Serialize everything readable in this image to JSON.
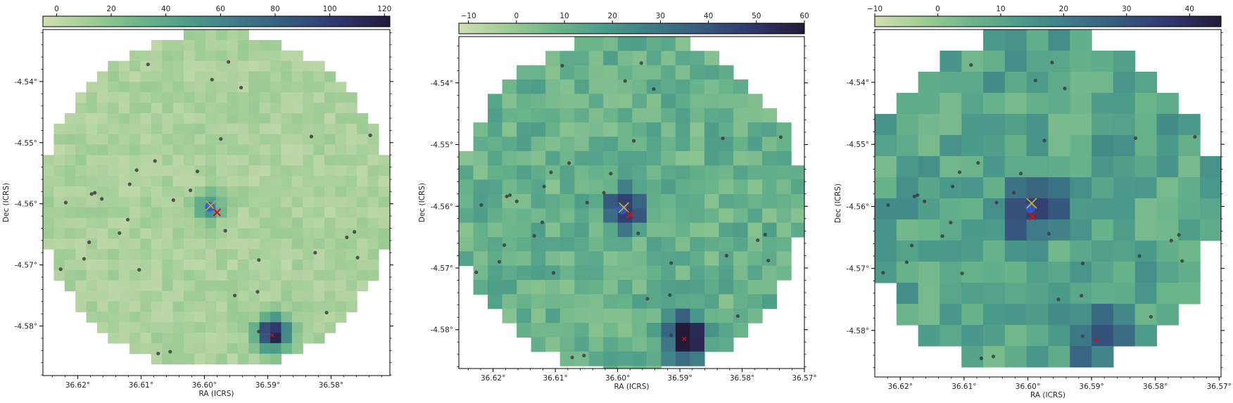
{
  "chart_data": [
    {
      "type": "heatmap",
      "xlabel": "RA (ICRS)",
      "ylabel": "Dec (ICRS)",
      "colormap": [
        "#d2dfb4",
        "#9dcb94",
        "#6ab48b",
        "#4a9a8a",
        "#3d7987",
        "#37577e",
        "#30356b",
        "#231a37"
      ],
      "colorbar": {
        "range": [
          -5,
          122
        ],
        "ticks": [
          0,
          20,
          40,
          60,
          80,
          100,
          120
        ]
      },
      "xlim": [
        36.6255,
        36.5707
      ],
      "ylim": [
        -4.5881,
        -4.5315
      ],
      "xticks": [
        36.62,
        36.61,
        36.6,
        36.59,
        36.58
      ],
      "xtick_labels": [
        "36.62°",
        "36.61°",
        "36.60°",
        "36.59°",
        "36.58°"
      ],
      "yticks": [
        -4.54,
        -4.55,
        -4.56,
        -4.57,
        -4.58
      ],
      "ytick_labels": [
        "-4.54°",
        "-4.55°",
        "-4.56°",
        "-4.57°",
        "-4.58°"
      ],
      "grid": {
        "ra_start": 36.6255,
        "ra_step": 0.00171,
        "dec_start": -4.5315,
        "dec_step": 0.00171,
        "cols": 32,
        "rows": 32
      },
      "aperture": {
        "ra": 36.5981,
        "dec": -4.5597,
        "radius": 0.0277
      },
      "base_level": 8,
      "noise_amplitude": 6,
      "sources": [
        {
          "ra": 36.599,
          "dec": -4.5605,
          "sigma": 0.0016,
          "peak": 45
        },
        {
          "ra": 36.5891,
          "dec": -4.5812,
          "sigma": 0.0018,
          "peak": 118
        }
      ],
      "markers": {
        "blue_circle": [
          36.5991,
          -4.5605
        ],
        "yellow_x": [
          36.599,
          -4.5603
        ],
        "red_x": [
          36.598,
          -4.5614
        ],
        "red_x_2": [
          36.5893,
          -4.5815
        ]
      },
      "points": [
        [
          36.6089,
          -4.5372
        ],
        [
          36.5962,
          -4.5368
        ],
        [
          36.5988,
          -4.5397
        ],
        [
          36.5942,
          -4.541
        ],
        [
          36.6078,
          -4.553
        ],
        [
          36.5974,
          -4.5494
        ],
        [
          36.6162,
          -4.5592
        ],
        [
          36.6049,
          -4.5594
        ],
        [
          36.6107,
          -4.5545
        ],
        [
          36.6011,
          -4.5547
        ],
        [
          36.6022,
          -4.5578
        ],
        [
          36.6173,
          -4.5582
        ],
        [
          36.6178,
          -4.5584
        ],
        [
          36.6118,
          -4.5568
        ],
        [
          36.5831,
          -4.549
        ],
        [
          36.5738,
          -4.5488
        ],
        [
          36.6219,
          -4.5598
        ],
        [
          36.6182,
          -4.5663
        ],
        [
          36.6121,
          -4.5626
        ],
        [
          36.6134,
          -4.5648
        ],
        [
          36.5967,
          -4.5644
        ],
        [
          36.5775,
          -4.5655
        ],
        [
          36.5763,
          -4.5646
        ],
        [
          36.619,
          -4.569
        ],
        [
          36.6227,
          -4.5707
        ],
        [
          36.6103,
          -4.5708
        ],
        [
          36.5914,
          -4.5692
        ],
        [
          36.5825,
          -4.568
        ],
        [
          36.5758,
          -4.5688
        ],
        [
          36.5952,
          -4.575
        ],
        [
          36.5916,
          -4.5744
        ],
        [
          36.5807,
          -4.5778
        ],
        [
          36.5914,
          -4.5809
        ],
        [
          36.6054,
          -4.5842
        ],
        [
          36.6073,
          -4.5845
        ]
      ]
    },
    {
      "type": "heatmap",
      "xlabel": "RA (ICRS)",
      "ylabel": "Dec (ICRS)",
      "colormap": [
        "#d2dfb4",
        "#9dcb94",
        "#6ab48b",
        "#4a9a8a",
        "#3d7987",
        "#37577e",
        "#30356b",
        "#231a37"
      ],
      "colorbar": {
        "range": [
          -12,
          60
        ],
        "ticks": [
          -10,
          0,
          10,
          20,
          30,
          40,
          50,
          60
        ]
      },
      "xlim": [
        36.6255,
        36.57
      ],
      "ylim": [
        -4.5863,
        -4.5325
      ],
      "xticks": [
        36.62,
        36.61,
        36.6,
        36.59,
        36.58,
        36.57
      ],
      "xtick_labels": [
        "36.62°",
        "36.61°",
        "36.60°",
        "36.59°",
        "36.58°",
        "36.57°"
      ],
      "yticks": [
        -4.54,
        -4.55,
        -4.56,
        -4.57,
        -4.58
      ],
      "ytick_labels": [
        "-4.54°",
        "-4.55°",
        "-4.56°",
        "-4.57°",
        "-4.58°"
      ],
      "grid": {
        "ra_start": 36.6255,
        "ra_step": 0.00232,
        "dec_start": -4.5325,
        "dec_step": 0.00232,
        "cols": 24,
        "rows": 24
      },
      "aperture": {
        "ra": 36.5981,
        "dec": -4.5597,
        "radius": 0.0277
      },
      "base_level": 10,
      "noise_amplitude": 8,
      "sources": [
        {
          "ra": 36.599,
          "dec": -4.5605,
          "sigma": 0.0022,
          "peak": 45
        },
        {
          "ra": 36.5891,
          "dec": -4.5812,
          "sigma": 0.0024,
          "peak": 58
        }
      ],
      "markers": {
        "blue_circle": [
          36.5993,
          -4.5605
        ],
        "yellow_x": [
          36.599,
          -4.5602
        ],
        "red_x": [
          36.598,
          -4.5614
        ],
        "red_x_2": [
          36.5893,
          -4.5815
        ]
      },
      "points": [
        [
          36.6089,
          -4.5372
        ],
        [
          36.5962,
          -4.5368
        ],
        [
          36.5988,
          -4.5397
        ],
        [
          36.5942,
          -4.541
        ],
        [
          36.6078,
          -4.553
        ],
        [
          36.5974,
          -4.5494
        ],
        [
          36.6162,
          -4.5592
        ],
        [
          36.6049,
          -4.5594
        ],
        [
          36.6107,
          -4.5545
        ],
        [
          36.6011,
          -4.5547
        ],
        [
          36.6022,
          -4.5578
        ],
        [
          36.6173,
          -4.5582
        ],
        [
          36.6178,
          -4.5584
        ],
        [
          36.6118,
          -4.5568
        ],
        [
          36.5831,
          -4.549
        ],
        [
          36.5738,
          -4.5488
        ],
        [
          36.6219,
          -4.5598
        ],
        [
          36.6182,
          -4.5663
        ],
        [
          36.6121,
          -4.5626
        ],
        [
          36.6134,
          -4.5648
        ],
        [
          36.5967,
          -4.5644
        ],
        [
          36.5775,
          -4.5655
        ],
        [
          36.5763,
          -4.5646
        ],
        [
          36.619,
          -4.569
        ],
        [
          36.6227,
          -4.5707
        ],
        [
          36.6103,
          -4.5708
        ],
        [
          36.5914,
          -4.5692
        ],
        [
          36.5825,
          -4.568
        ],
        [
          36.5758,
          -4.5688
        ],
        [
          36.5952,
          -4.575
        ],
        [
          36.5916,
          -4.5744
        ],
        [
          36.5807,
          -4.5778
        ],
        [
          36.5914,
          -4.5809
        ],
        [
          36.6054,
          -4.5842
        ],
        [
          36.6073,
          -4.5845
        ]
      ]
    },
    {
      "type": "heatmap",
      "xlabel": "RA (ICRS)",
      "ylabel": "Dec (ICRS)",
      "colormap": [
        "#d2dfb4",
        "#9dcb94",
        "#6ab48b",
        "#4a9a8a",
        "#3d7987",
        "#37577e",
        "#30356b",
        "#231a37"
      ],
      "colorbar": {
        "range": [
          -10,
          45
        ],
        "ticks": [
          -10,
          0,
          10,
          20,
          30,
          40
        ]
      },
      "xlim": [
        36.624,
        36.5697
      ],
      "ylim": [
        -4.5875,
        -4.5315
      ],
      "xticks": [
        36.62,
        36.61,
        36.6,
        36.59,
        36.58,
        36.57
      ],
      "xtick_labels": [
        "36.62°",
        "36.61°",
        "36.60°",
        "36.59°",
        "36.58°",
        "36.57°"
      ],
      "yticks": [
        -4.54,
        -4.55,
        -4.56,
        -4.57,
        -4.58
      ],
      "ytick_labels": [
        "-4.54°",
        "-4.55°",
        "-4.56°",
        "-4.57°",
        "-4.58°"
      ],
      "grid": {
        "ra_start": 36.624,
        "ra_step": 0.0034,
        "dec_start": -4.5315,
        "dec_step": 0.0034,
        "cols": 16,
        "rows": 17
      },
      "aperture": {
        "ra": 36.5981,
        "dec": -4.5597,
        "radius": 0.0277
      },
      "base_level": 10,
      "noise_amplitude": 7,
      "sources": [
        {
          "ra": 36.5995,
          "dec": -4.5605,
          "sigma": 0.0032,
          "peak": 32
        },
        {
          "ra": 36.5891,
          "dec": -4.5812,
          "sigma": 0.0034,
          "peak": 22
        }
      ],
      "markers": {
        "blue_circle": [
          36.5996,
          -4.5603
        ],
        "yellow_x": [
          36.5994,
          -4.5595
        ],
        "red_x": [
          36.5993,
          -4.5616
        ],
        "red_x_2": [
          36.5893,
          -4.5815
        ]
      },
      "points": [
        [
          36.6089,
          -4.5372
        ],
        [
          36.5962,
          -4.5368
        ],
        [
          36.5988,
          -4.5397
        ],
        [
          36.5942,
          -4.541
        ],
        [
          36.6078,
          -4.553
        ],
        [
          36.5974,
          -4.5494
        ],
        [
          36.6162,
          -4.5592
        ],
        [
          36.6049,
          -4.5594
        ],
        [
          36.6107,
          -4.5545
        ],
        [
          36.6011,
          -4.5547
        ],
        [
          36.6022,
          -4.5578
        ],
        [
          36.6173,
          -4.5582
        ],
        [
          36.6178,
          -4.5584
        ],
        [
          36.6118,
          -4.5568
        ],
        [
          36.5831,
          -4.549
        ],
        [
          36.5738,
          -4.5488
        ],
        [
          36.6219,
          -4.5598
        ],
        [
          36.6182,
          -4.5663
        ],
        [
          36.6121,
          -4.5626
        ],
        [
          36.6134,
          -4.5648
        ],
        [
          36.5967,
          -4.5644
        ],
        [
          36.5775,
          -4.5655
        ],
        [
          36.5763,
          -4.5646
        ],
        [
          36.619,
          -4.569
        ],
        [
          36.6227,
          -4.5707
        ],
        [
          36.6103,
          -4.5708
        ],
        [
          36.5914,
          -4.5692
        ],
        [
          36.5825,
          -4.568
        ],
        [
          36.5758,
          -4.5688
        ],
        [
          36.5952,
          -4.575
        ],
        [
          36.5916,
          -4.5744
        ],
        [
          36.5807,
          -4.5778
        ],
        [
          36.5914,
          -4.5809
        ],
        [
          36.6054,
          -4.5842
        ],
        [
          36.6073,
          -4.5845
        ]
      ]
    }
  ]
}
